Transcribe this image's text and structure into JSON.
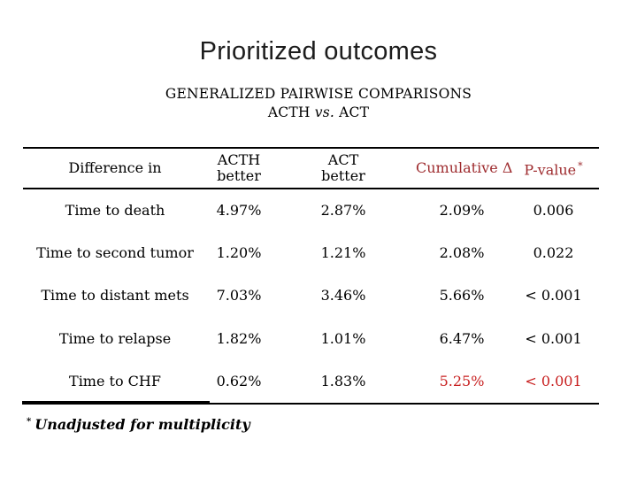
{
  "slide": {
    "title": "Prioritized outcomes",
    "subtitle": {
      "line1": "GENERALIZED PAIRWISE COMPARISONS",
      "line2_pre": "ACTH ",
      "line2_vs": "vs.",
      "line2_post": " ACT"
    },
    "footnote": {
      "marker": "*",
      "text": "Unadjusted for multiplicity"
    }
  },
  "table": {
    "columns": {
      "diff": "Difference in",
      "acth_line1": "ACTH",
      "acth_line2": "better",
      "act_line1": "ACT",
      "act_line2": "better",
      "cumulative": "Cumulative Δ",
      "pvalue": "P-value",
      "pvalue_marker": "*"
    },
    "rows": [
      {
        "label": "Time to death",
        "acth": "4.97%",
        "act": "2.87%",
        "cumulative": "2.09%",
        "pvalue": "0.006"
      },
      {
        "label": "Time to second tumor",
        "acth": "1.20%",
        "act": "1.21%",
        "cumulative": "2.08%",
        "pvalue": "0.022"
      },
      {
        "label": "Time to distant mets",
        "acth": "7.03%",
        "act": "3.46%",
        "cumulative": "5.66%",
        "pvalue": "< 0.001"
      },
      {
        "label": "Time to relapse",
        "acth": "1.82%",
        "act": "1.01%",
        "cumulative": "6.47%",
        "pvalue": "< 0.001"
      },
      {
        "label": "Time to CHF",
        "acth": "0.62%",
        "act": "1.83%",
        "cumulative": "5.25%",
        "pvalue": "< 0.001",
        "highlight": true
      }
    ]
  },
  "colors": {
    "header_accent": "#9E2B2E",
    "highlight_red": "#C82020",
    "text": "#000000"
  }
}
